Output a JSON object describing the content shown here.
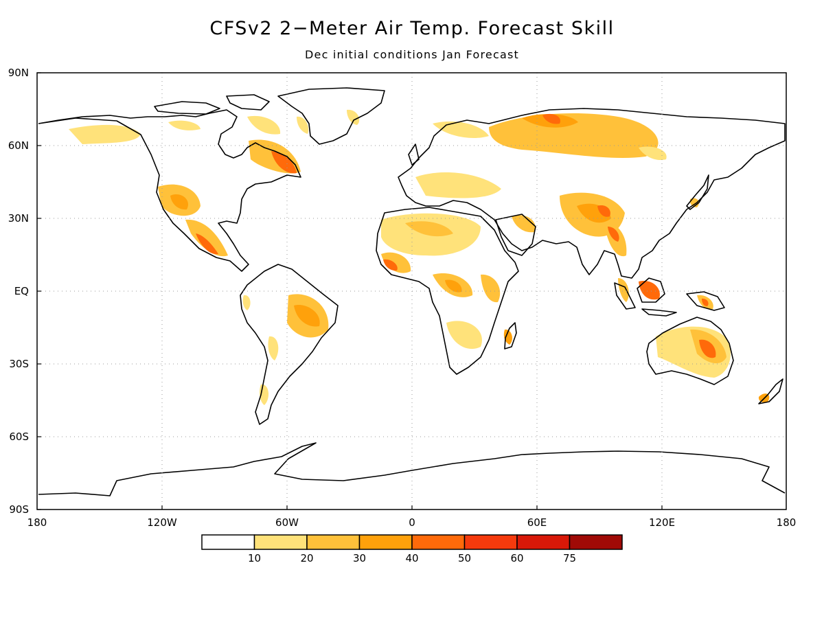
{
  "title": "CFSv2 2−Meter Air Temp. Forecast Skill",
  "subtitle": "Dec initial conditions   Jan Forecast",
  "lat_labels": [
    "90N",
    "60N",
    "30N",
    "EQ",
    "30S",
    "60S",
    "90S"
  ],
  "lon_labels": [
    "180",
    "120W",
    "60W",
    "0",
    "60E",
    "120E",
    "180"
  ],
  "colorbar": {
    "labels": [
      "10",
      "20",
      "30",
      "40",
      "50",
      "60",
      "75"
    ],
    "colors": [
      "#ffffff",
      "#ffe27a",
      "#ffc13a",
      "#ffa10b",
      "#ff6a0a",
      "#f53a0d",
      "#d81808",
      "#a00a06"
    ]
  },
  "colors": {
    "land_outline": "#000000",
    "grid": "#999999",
    "skill_10_20": "#ffe27a",
    "skill_20_30": "#ffc13a",
    "skill_30_40": "#ffa10b",
    "skill_40_50": "#ff6a0a",
    "skill_50_60": "#f53a0d"
  }
}
